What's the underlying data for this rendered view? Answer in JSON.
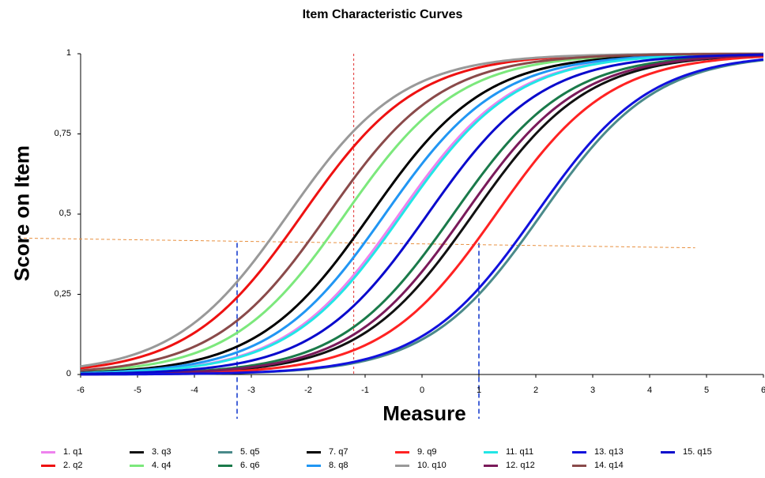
{
  "chart_data": {
    "type": "line",
    "title": "Item Characteristic Curves",
    "xlabel": "Measure",
    "ylabel": "Score on Item",
    "xlim": [
      -6,
      6
    ],
    "ylim": [
      0,
      1
    ],
    "x_ticks": [
      "-6",
      "-5",
      "-4",
      "-3",
      "-2",
      "-1",
      "0",
      "1",
      "2",
      "3",
      "4",
      "5",
      "6"
    ],
    "y_ticks": [
      "0",
      "0,25",
      "0,5",
      "0,75",
      "1"
    ],
    "series": [
      {
        "name": "1. q1",
        "color": "#ee82ee",
        "difficulty": -0.4
      },
      {
        "name": "2. q2",
        "color": "#ee1111",
        "difficulty": -2.1
      },
      {
        "name": "3. q3",
        "color": "#111111",
        "difficulty": 0.9
      },
      {
        "name": "4. q4",
        "color": "#7ce87c",
        "difficulty": -1.35
      },
      {
        "name": "5. q5",
        "color": "#4a8a8a",
        "difficulty": 2.1
      },
      {
        "name": "6. q6",
        "color": "#1a7a4a",
        "difficulty": 0.55
      },
      {
        "name": "7. q7",
        "color": "#000000",
        "difficulty": -0.9
      },
      {
        "name": "8. q8",
        "color": "#2196f3",
        "difficulty": -0.65
      },
      {
        "name": "9. q9",
        "color": "#ff2222",
        "difficulty": 1.3
      },
      {
        "name": "10. q10",
        "color": "#999999",
        "difficulty": -2.35
      },
      {
        "name": "11. q11",
        "color": "#22e6e6",
        "difficulty": -0.35
      },
      {
        "name": "12. q12",
        "color": "#7a1a5a",
        "difficulty": 0.75
      },
      {
        "name": "13. q13",
        "color": "#1111dd",
        "difficulty": 2.0
      },
      {
        "name": "14. q14",
        "color": "#8a4a4a",
        "difficulty": -1.65
      },
      {
        "name": "15. q15",
        "color": "#0a0acc",
        "difficulty": 0.1
      }
    ],
    "reference_lines": [
      {
        "orientation": "vertical",
        "x": -1.2,
        "color": "#e23333",
        "style": "dashed"
      },
      {
        "orientation": "vertical",
        "x": -3.25,
        "y_range": [
          0,
          0.41
        ],
        "color": "#1a3fcf",
        "style": "dashed"
      },
      {
        "orientation": "vertical",
        "x": 1.0,
        "y_range": [
          0,
          0.41
        ],
        "color": "#1a3fcf",
        "style": "dashed"
      },
      {
        "orientation": "horizontal",
        "x_range": [
          -7.0,
          4.8
        ],
        "y_range": [
          0.425,
          0.395
        ],
        "color": "#e89040",
        "style": "dashed"
      }
    ],
    "grid": false,
    "legend_position": "bottom"
  }
}
